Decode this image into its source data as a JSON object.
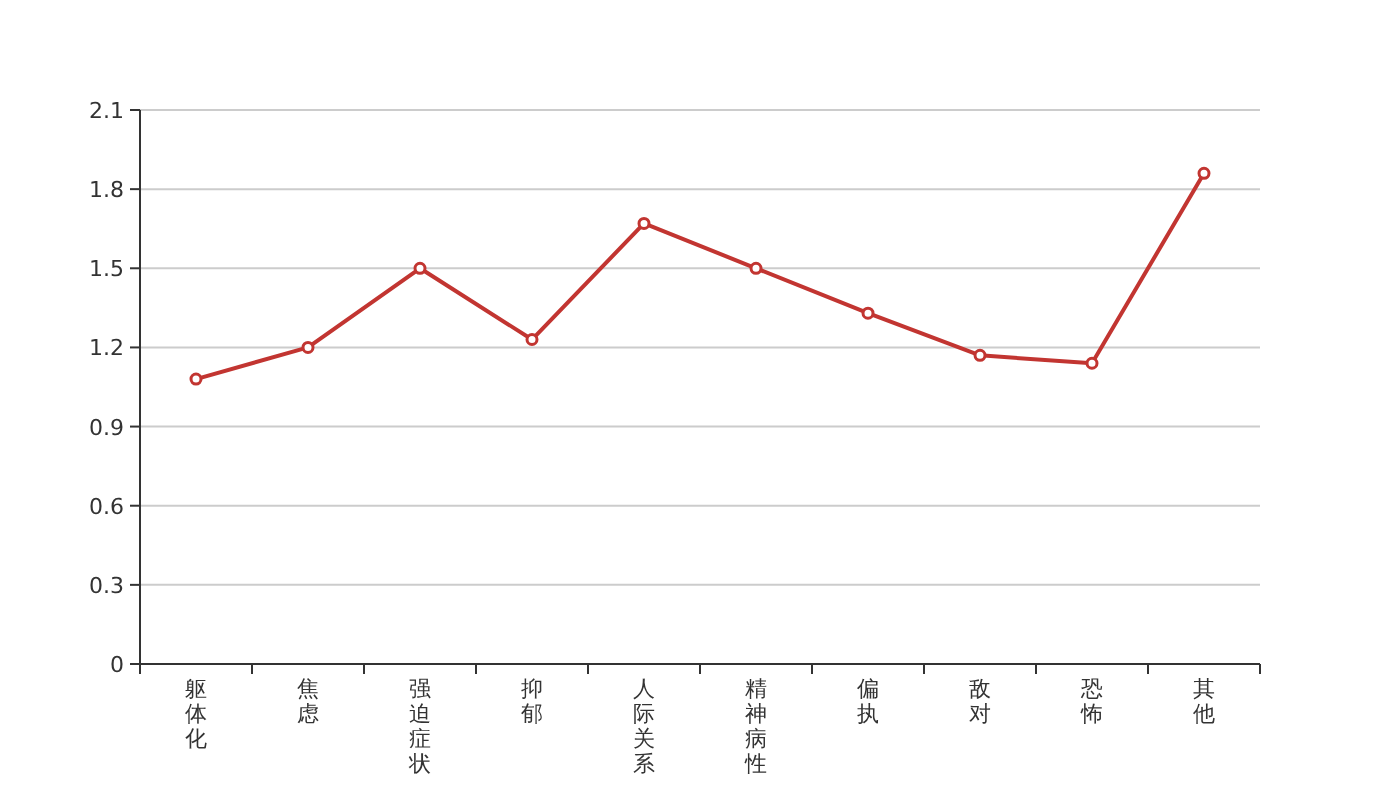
{
  "chart_data": {
    "type": "line",
    "categories": [
      "躯体化",
      "焦虑",
      "强迫症状",
      "抑郁",
      "人际关系",
      "精神病性",
      "偏执",
      "敌对",
      "恐怖",
      "其他"
    ],
    "series": [
      {
        "color": "#c23531",
        "values": [
          1.08,
          1.2,
          1.5,
          1.23,
          1.67,
          1.5,
          1.33,
          1.17,
          1.14,
          1.86
        ]
      }
    ],
    "ylim": [
      0,
      2.1
    ],
    "yticks": [
      0,
      0.3,
      0.6,
      0.9,
      1.2,
      1.5,
      1.8,
      2.1
    ],
    "grid": "y",
    "marker": "circle",
    "line_style": "solid"
  }
}
